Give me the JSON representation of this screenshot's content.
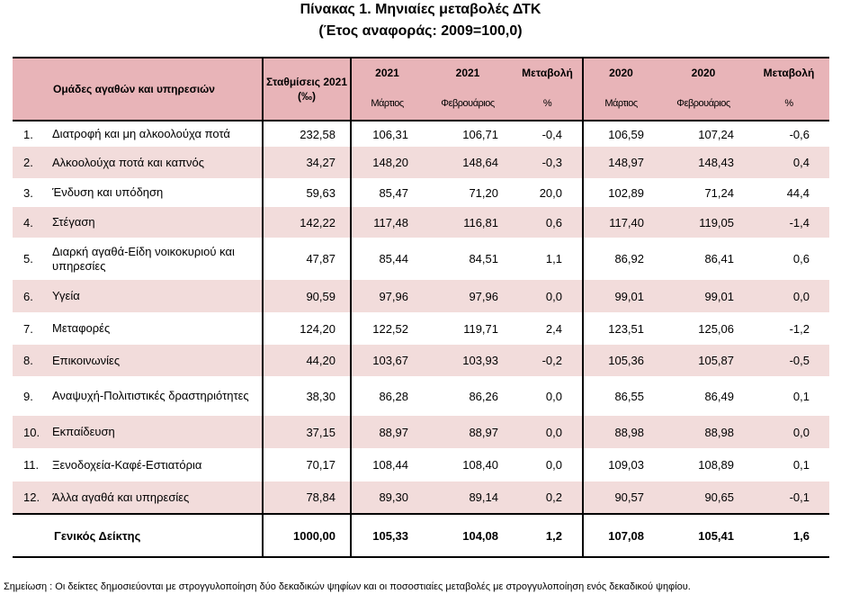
{
  "title": "Πίνακας 1. Μηνιαίες μεταβολές ΔΤΚ",
  "subtitle": "(Έτος αναφοράς: 2009=100,0)",
  "headers": {
    "group": "Ομάδες αγαθών και υπηρεσιών",
    "weights": "Σταθμίσεις 2021 (‰)",
    "year_a1": "2021",
    "year_a2": "2021",
    "change_a": "Μεταβολή",
    "change_a_unit": "%",
    "year_b1": "2020",
    "year_b2": "2020",
    "change_b": "Μεταβολή",
    "change_b_unit": "%",
    "month_a1": "Μάρτιος",
    "month_a2": "Φεβρουάριος",
    "month_b1": "Μάρτιος",
    "month_b2": "Φεβρουάριος"
  },
  "rows": [
    {
      "idx": "1.",
      "name": "Διατροφή και μη αλκοολούχα ποτά",
      "w": "232,58",
      "a1": "106,31",
      "a2": "106,71",
      "ca": "-0,4",
      "b1": "106,59",
      "b2": "107,24",
      "cb": "-0,6"
    },
    {
      "idx": "2.",
      "name": "Αλκοολούχα ποτά και καπνός",
      "w": "34,27",
      "a1": "148,20",
      "a2": "148,64",
      "ca": "-0,3",
      "b1": "148,97",
      "b2": "148,43",
      "cb": "0,4"
    },
    {
      "idx": "3.",
      "name": "Ένδυση και υπόδηση",
      "w": "59,63",
      "a1": "85,47",
      "a2": "71,20",
      "ca": "20,0",
      "b1": "102,89",
      "b2": "71,24",
      "cb": "44,4"
    },
    {
      "idx": "4.",
      "name": "Στέγαση",
      "w": "142,22",
      "a1": "117,48",
      "a2": "116,81",
      "ca": "0,6",
      "b1": "117,40",
      "b2": "119,05",
      "cb": "-1,4"
    },
    {
      "idx": "5.",
      "name": "Διαρκή αγαθά-Είδη νοικοκυριού και υπηρεσίες",
      "w": "47,87",
      "a1": "85,44",
      "a2": "84,51",
      "ca": "1,1",
      "b1": "86,92",
      "b2": "86,41",
      "cb": "0,6"
    },
    {
      "idx": "6.",
      "name": "Υγεία",
      "w": "90,59",
      "a1": "97,96",
      "a2": "97,96",
      "ca": "0,0",
      "b1": "99,01",
      "b2": "99,01",
      "cb": "0,0"
    },
    {
      "idx": "7.",
      "name": "Μεταφορές",
      "w": "124,20",
      "a1": "122,52",
      "a2": "119,71",
      "ca": "2,4",
      "b1": "123,51",
      "b2": "125,06",
      "cb": "-1,2"
    },
    {
      "idx": "8.",
      "name": "Επικοινωνίες",
      "w": "44,20",
      "a1": "103,67",
      "a2": "103,93",
      "ca": "-0,2",
      "b1": "105,36",
      "b2": "105,87",
      "cb": "-0,5"
    },
    {
      "idx": "9.",
      "name": "Αναψυχή-Πολιτιστικές δραστηριότητες",
      "w": "38,30",
      "a1": "86,28",
      "a2": "86,26",
      "ca": "0,0",
      "b1": "86,55",
      "b2": "86,49",
      "cb": "0,1"
    },
    {
      "idx": "10.",
      "name": "Εκπαίδευση",
      "w": "37,15",
      "a1": "88,97",
      "a2": "88,97",
      "ca": "0,0",
      "b1": "88,98",
      "b2": "88,98",
      "cb": "0,0"
    },
    {
      "idx": "11.",
      "name": "Ξενοδοχεία-Καφέ-Εστιατόρια",
      "w": "70,17",
      "a1": "108,44",
      "a2": "108,40",
      "ca": "0,0",
      "b1": "109,03",
      "b2": "108,89",
      "cb": "0,1"
    },
    {
      "idx": "12.",
      "name": "Άλλα αγαθά και υπηρεσίες",
      "w": "78,84",
      "a1": "89,30",
      "a2": "89,14",
      "ca": "0,2",
      "b1": "90,57",
      "b2": "90,65",
      "cb": "-0,1"
    }
  ],
  "total": {
    "name": "Γενικός Δείκτης",
    "w": "1000,00",
    "a1": "105,33",
    "a2": "104,08",
    "ca": "1,2",
    "b1": "107,08",
    "b2": "105,41",
    "cb": "1,6"
  },
  "note": "Σημείωση : Οι δείκτες δημοσιεύονται με στρογγυλοποίηση δύο δεκαδικών ψηφίων και οι ποσοστιαίες μεταβολές με στρογγυλοποίηση ενός δεκαδικού ψηφίου.",
  "colors": {
    "header_bg": "#e8b4b8",
    "row_stripe": "#f2dcdb"
  }
}
